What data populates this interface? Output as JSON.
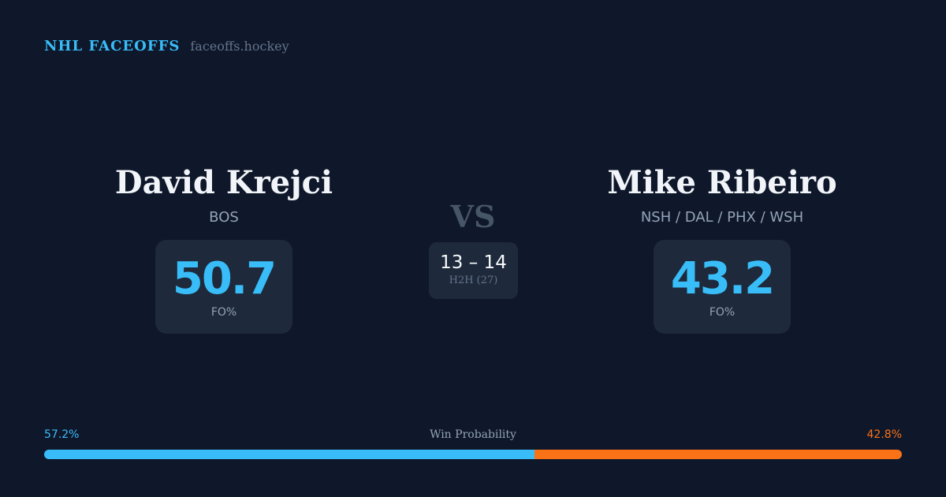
{
  "header": {
    "brand": "NHL FACEOFFS",
    "url": "faceoffs.hockey"
  },
  "player1": {
    "name": "David Krejci",
    "team": "BOS",
    "fo_value": "50.7",
    "fo_label": "FO%"
  },
  "player2": {
    "name": "Mike Ribeiro",
    "team": "NSH / DAL / PHX / WSH",
    "fo_value": "43.2",
    "fo_label": "FO%"
  },
  "versus": {
    "label": "VS",
    "h2h_score": "13 – 14",
    "h2h_label": "H2H (27)"
  },
  "win_probability": {
    "title": "Win Probability",
    "left_label": "57.2%",
    "right_label": "42.8%",
    "left_percent": 57.2,
    "right_percent": 42.8,
    "left_color": "#38bdf8",
    "right_color": "#f97316"
  }
}
